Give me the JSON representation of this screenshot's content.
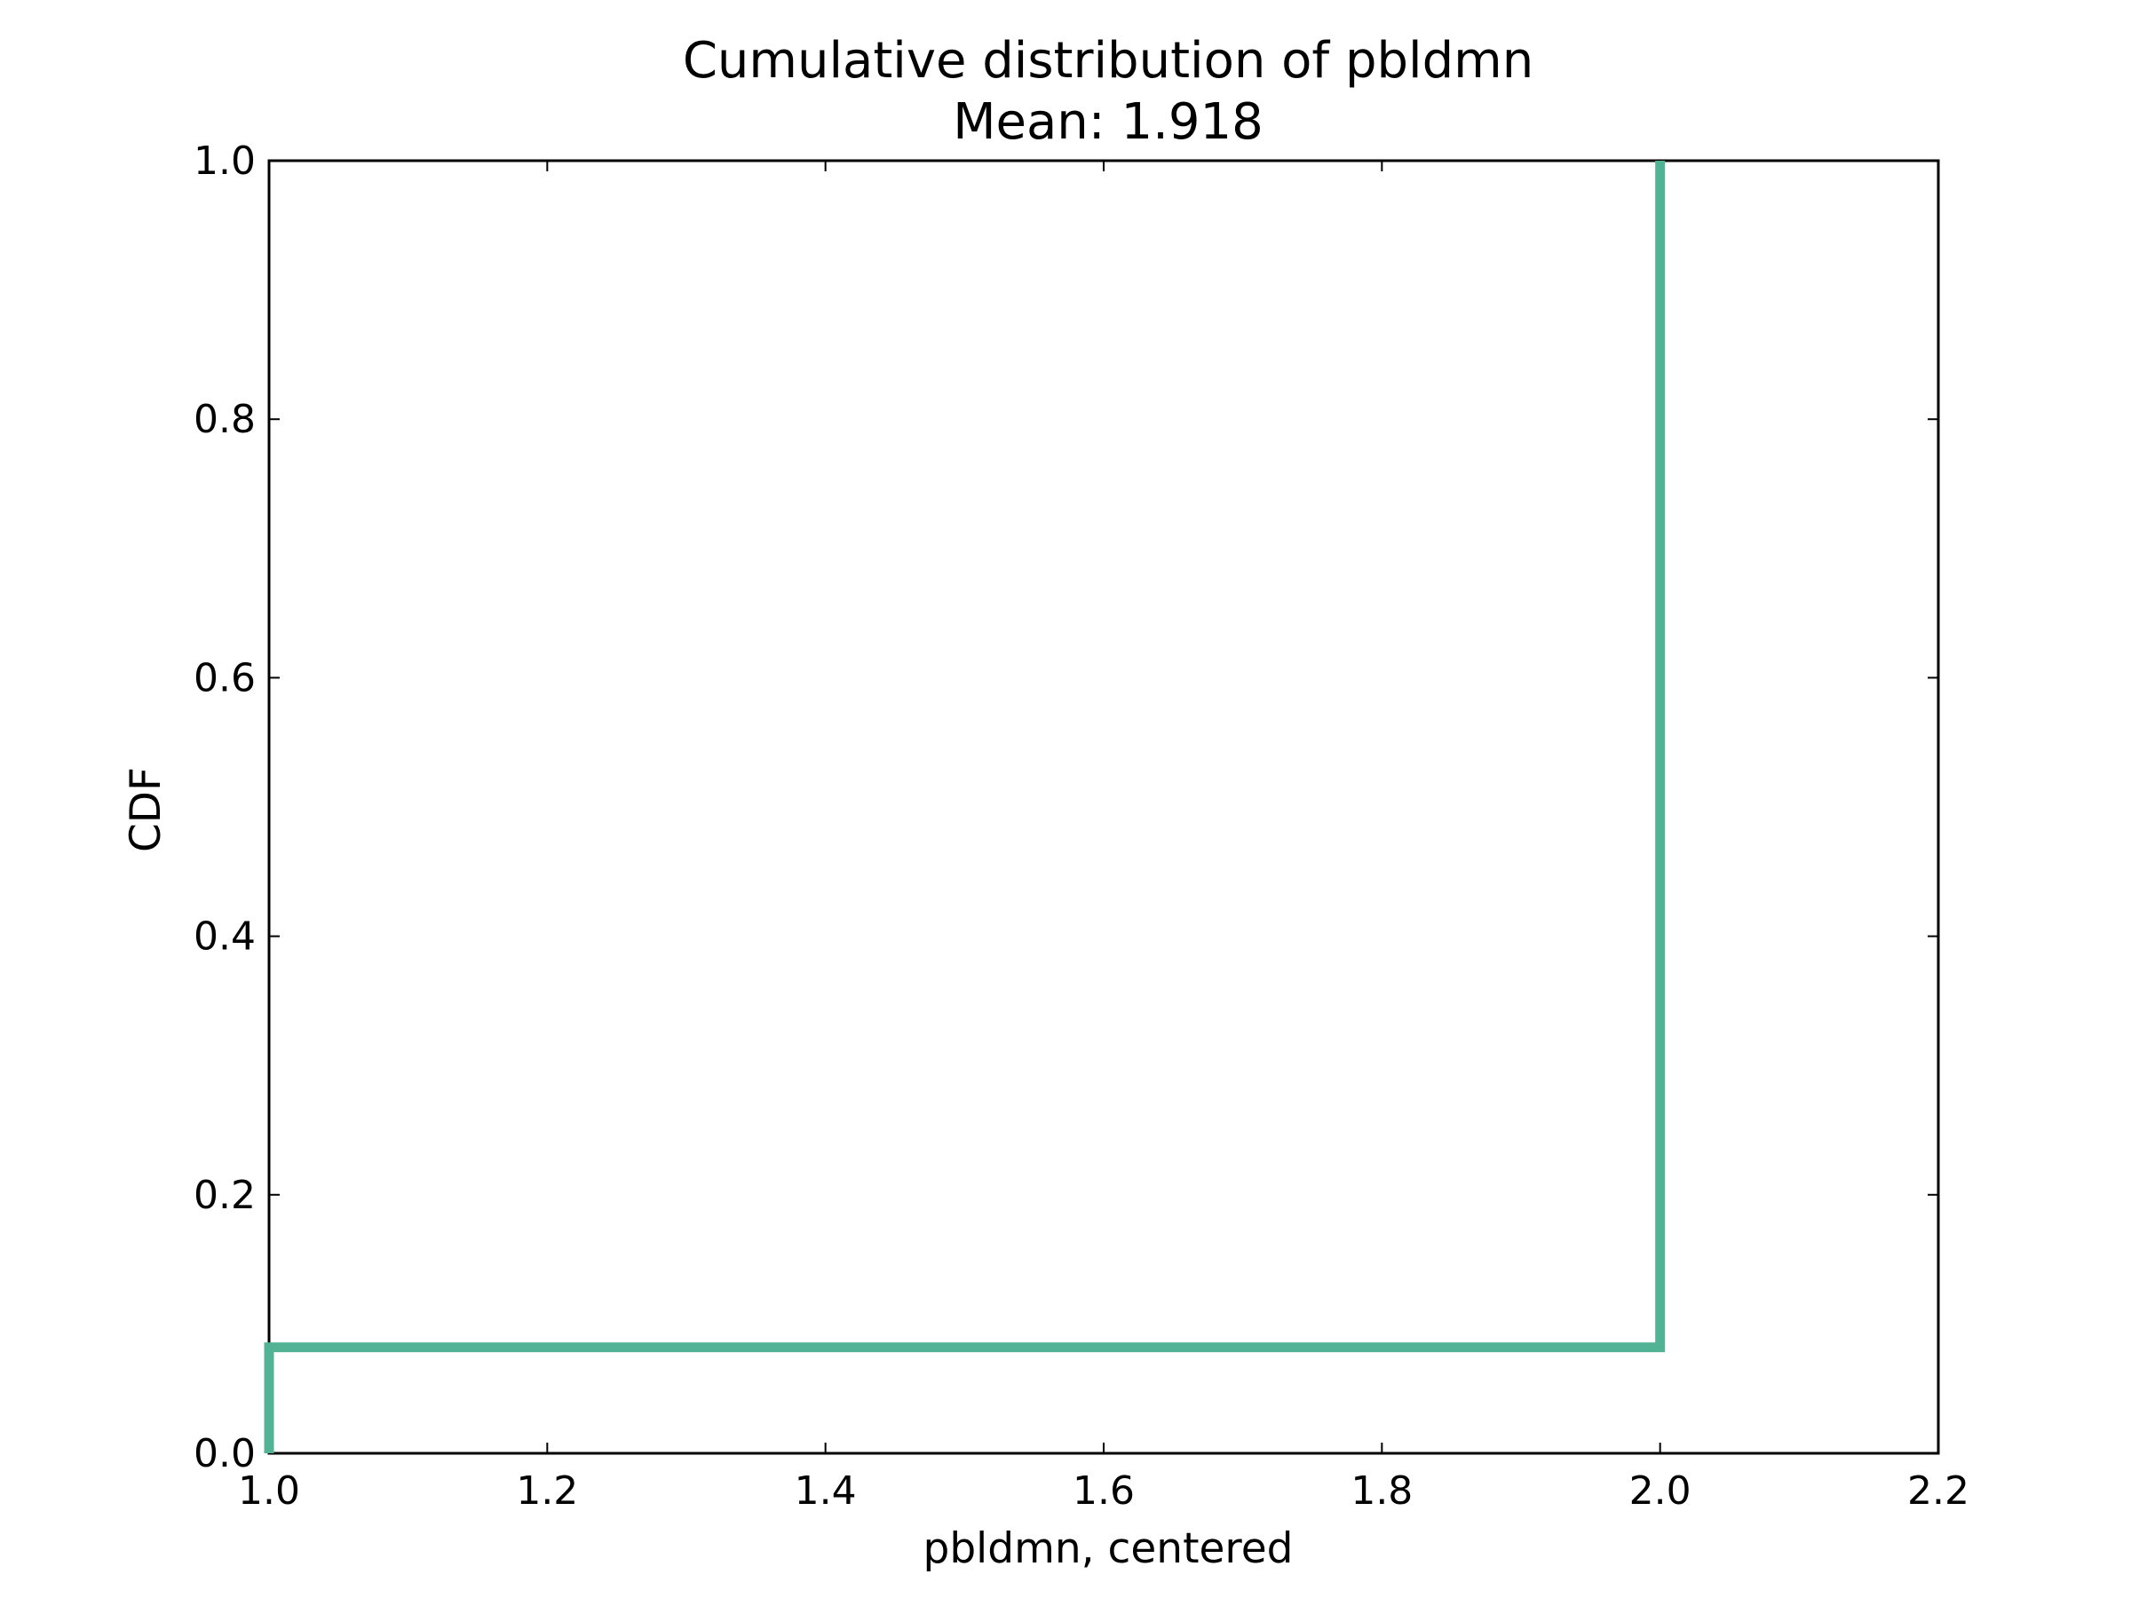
{
  "chart_data": {
    "type": "line",
    "title": "Cumulative distribution of pbldmn",
    "subtitle": "Mean: 1.918",
    "xlabel": "pbldmn, centered",
    "ylabel": "CDF",
    "xlim": [
      1.0,
      2.2
    ],
    "ylim": [
      0.0,
      1.0
    ],
    "x_ticks": [
      "1.0",
      "1.2",
      "1.4",
      "1.6",
      "1.8",
      "2.0",
      "2.2"
    ],
    "y_ticks": [
      "0.0",
      "0.2",
      "0.4",
      "0.6",
      "0.8",
      "1.0"
    ],
    "grid": false,
    "legend": "none",
    "line_style": "step",
    "series": [
      {
        "color": "#52b394",
        "x": [
          1.0,
          1.0,
          2.0,
          2.0
        ],
        "y": [
          0.0,
          0.082,
          0.082,
          1.0
        ]
      }
    ]
  }
}
